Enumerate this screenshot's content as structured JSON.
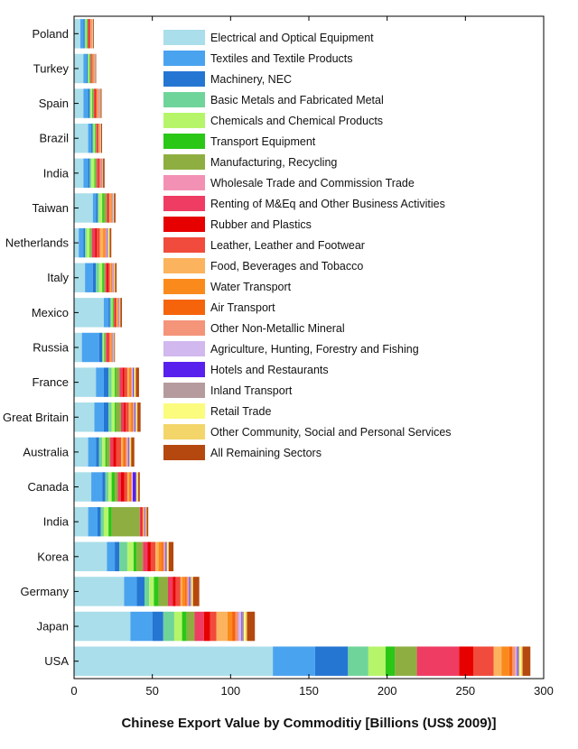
{
  "chart_data": {
    "type": "bar",
    "orientation": "horizontal",
    "stacked": true,
    "xlabel": "Chinese Export Value by Commoditiy [Billions (US$ 2009)]",
    "ylabel": "",
    "title": "",
    "xlim": [
      0,
      300
    ],
    "xticks": [
      0,
      50,
      100,
      150,
      200,
      250,
      300
    ],
    "legend_position": "top-right",
    "grid": false,
    "categories": [
      "USA",
      "Japan",
      "Germany",
      "Korea",
      "India",
      "Canada",
      "Australia",
      "Great Britain",
      "France",
      "Russia",
      "Mexico",
      "Italy",
      "Netherlands",
      "Taiwan",
      "India",
      "Brazil",
      "Spain",
      "Turkey",
      "Poland"
    ],
    "series": [
      {
        "name": "Electrical and Optical Equipment",
        "color": "#aadeea",
        "values": [
          127,
          36,
          32,
          21,
          9,
          11,
          9,
          13,
          14,
          5,
          19,
          7,
          3,
          12,
          6,
          9,
          6,
          6,
          4
        ]
      },
      {
        "name": "Textiles and Textile Products",
        "color": "#4aa3ef",
        "values": [
          27,
          14,
          8,
          5,
          6,
          7,
          5,
          6,
          5,
          11,
          3,
          5,
          3,
          2,
          3,
          2,
          3,
          2,
          2
        ]
      },
      {
        "name": "Machinery, NEC",
        "color": "#2576d2",
        "values": [
          21,
          7,
          5,
          3,
          2,
          2,
          2,
          3,
          3,
          2,
          1,
          2,
          1,
          1,
          1,
          0.8,
          1,
          0.6,
          0.8
        ]
      },
      {
        "name": "Basic Metals and Fabricated Metal",
        "color": "#6fd49a",
        "values": [
          13,
          7,
          3,
          5,
          2,
          2,
          2,
          2,
          2,
          0.6,
          1,
          2,
          1,
          1,
          1,
          0.6,
          0.6,
          0.6,
          0.6
        ]
      },
      {
        "name": "Chemicals and Chemical Products",
        "color": "#b6f56a",
        "values": [
          11,
          5,
          3,
          4,
          3,
          2,
          2,
          2,
          2,
          0.6,
          0.6,
          2,
          2,
          2,
          2,
          0.8,
          1,
          0.6,
          0.6
        ]
      },
      {
        "name": "Transport Equipment",
        "color": "#2ac717",
        "values": [
          6,
          3,
          3,
          2,
          2,
          2,
          1,
          1,
          1,
          0.5,
          0.5,
          1,
          0.5,
          1,
          0.5,
          0.5,
          0.5,
          0.4,
          0.5
        ]
      },
      {
        "name": "Manufacturing, Recycling",
        "color": "#8fae41",
        "values": [
          14,
          5,
          6,
          4,
          18,
          2,
          2,
          3,
          2,
          0.6,
          0.5,
          1,
          1,
          2,
          1,
          0.6,
          0.5,
          0.5,
          0.5
        ]
      },
      {
        "name": "Wholesale Trade and Commission Trade",
        "color": "#f391b4",
        "values": [
          0,
          0,
          0,
          0,
          0,
          0,
          0,
          0,
          0,
          0,
          0,
          0,
          0,
          0,
          0,
          0,
          0,
          0,
          0
        ]
      },
      {
        "name": "Renting of M&Eq and Other Business Activities",
        "color": "#ee3c63",
        "values": [
          27,
          6,
          3,
          3,
          1,
          2,
          2,
          2,
          2,
          1,
          0.5,
          1,
          2,
          0.6,
          1,
          0.5,
          0.5,
          0.4,
          0.5
        ]
      },
      {
        "name": "Rubber and Plastics",
        "color": "#e70000",
        "values": [
          9,
          4,
          2,
          2,
          0.5,
          2,
          2,
          1,
          1,
          0.5,
          0.5,
          1,
          1,
          0.5,
          0.5,
          0.4,
          0.5,
          0.3,
          0.4
        ]
      },
      {
        "name": "Leather, Leather and Footwear",
        "color": "#f04b3c",
        "values": [
          13,
          4,
          3,
          3,
          0.5,
          2,
          3,
          2,
          2,
          1,
          0.5,
          1,
          2,
          0.6,
          0.5,
          0.4,
          1,
          0.5,
          0.5
        ]
      },
      {
        "name": "Food, Beverages and Tobacco",
        "color": "#fbb35d",
        "values": [
          5,
          7,
          1,
          2,
          0.3,
          1,
          1,
          1,
          1,
          0.5,
          0.4,
          0.5,
          2,
          0.5,
          0.3,
          0.3,
          0.4,
          0.3,
          0.3
        ]
      },
      {
        "name": "Water Transport",
        "color": "#fb8a1c",
        "values": [
          5,
          3,
          2,
          2,
          0.3,
          1,
          1,
          1,
          1,
          0.4,
          0.4,
          0.5,
          1,
          0.5,
          0.3,
          0.3,
          0.4,
          0.3,
          0.3
        ]
      },
      {
        "name": "Air Transport",
        "color": "#f5640b",
        "values": [
          2,
          2,
          1,
          1,
          0.2,
          0.5,
          1,
          0.5,
          0.5,
          0.3,
          0.3,
          0.4,
          0.5,
          0.3,
          0.2,
          0.2,
          0.3,
          0.2,
          0.2
        ]
      },
      {
        "name": "Other Non-Metallic Mineral",
        "color": "#f49479",
        "values": [
          2,
          2,
          1,
          1,
          0.3,
          0.5,
          1,
          0.5,
          0.5,
          0.3,
          0.3,
          0.4,
          0.5,
          0.3,
          0.2,
          0.2,
          0.3,
          0.2,
          0.2
        ]
      },
      {
        "name": "Agriculture, Hunting, Forestry and Fishing",
        "color": "#d1b8ee",
        "values": [
          1,
          2,
          0.5,
          0.5,
          0.2,
          0.5,
          0.5,
          0.5,
          0.5,
          0.3,
          0.2,
          0.3,
          0.5,
          0.2,
          0.2,
          0.1,
          0.2,
          0.1,
          0.1
        ]
      },
      {
        "name": "Hotels and Restaurants",
        "color": "#5720ec",
        "values": [
          0.5,
          0.5,
          0.5,
          0.5,
          0.3,
          2,
          0.5,
          0.5,
          0.5,
          0.2,
          0.2,
          0.2,
          0.3,
          0.2,
          0.3,
          0.1,
          0.2,
          0.1,
          0.1
        ]
      },
      {
        "name": "Inland Transport",
        "color": "#b59b9d",
        "values": [
          1,
          1,
          1,
          0.5,
          0.3,
          0.5,
          0.5,
          0.5,
          0.5,
          0.3,
          0.3,
          0.3,
          0.5,
          0.3,
          0.2,
          0.2,
          0.2,
          0.2,
          0.2
        ]
      },
      {
        "name": "Retail Trade",
        "color": "#fbfb7e",
        "values": [
          1,
          1,
          0.5,
          0.5,
          0.2,
          0.5,
          0.5,
          0.5,
          0.5,
          0.2,
          0.2,
          0.3,
          0.5,
          0.2,
          0.1,
          0.1,
          0.2,
          0.1,
          0.1
        ]
      },
      {
        "name": "Other Community, Social and Personal Services",
        "color": "#f3d56a",
        "values": [
          1,
          1,
          0.5,
          0.5,
          0.3,
          0.5,
          0.5,
          0.5,
          0.5,
          0.3,
          0.2,
          0.3,
          0.5,
          0.3,
          0.2,
          0.2,
          0.2,
          0.2,
          0.2
        ]
      },
      {
        "name": "All Remaining Sectors",
        "color": "#b4480f",
        "values": [
          5,
          5,
          4,
          3,
          1,
          1,
          2,
          2,
          2,
          0.5,
          1,
          1,
          1,
          1,
          1,
          0.6,
          0.6,
          0.5,
          0.5
        ]
      }
    ]
  }
}
